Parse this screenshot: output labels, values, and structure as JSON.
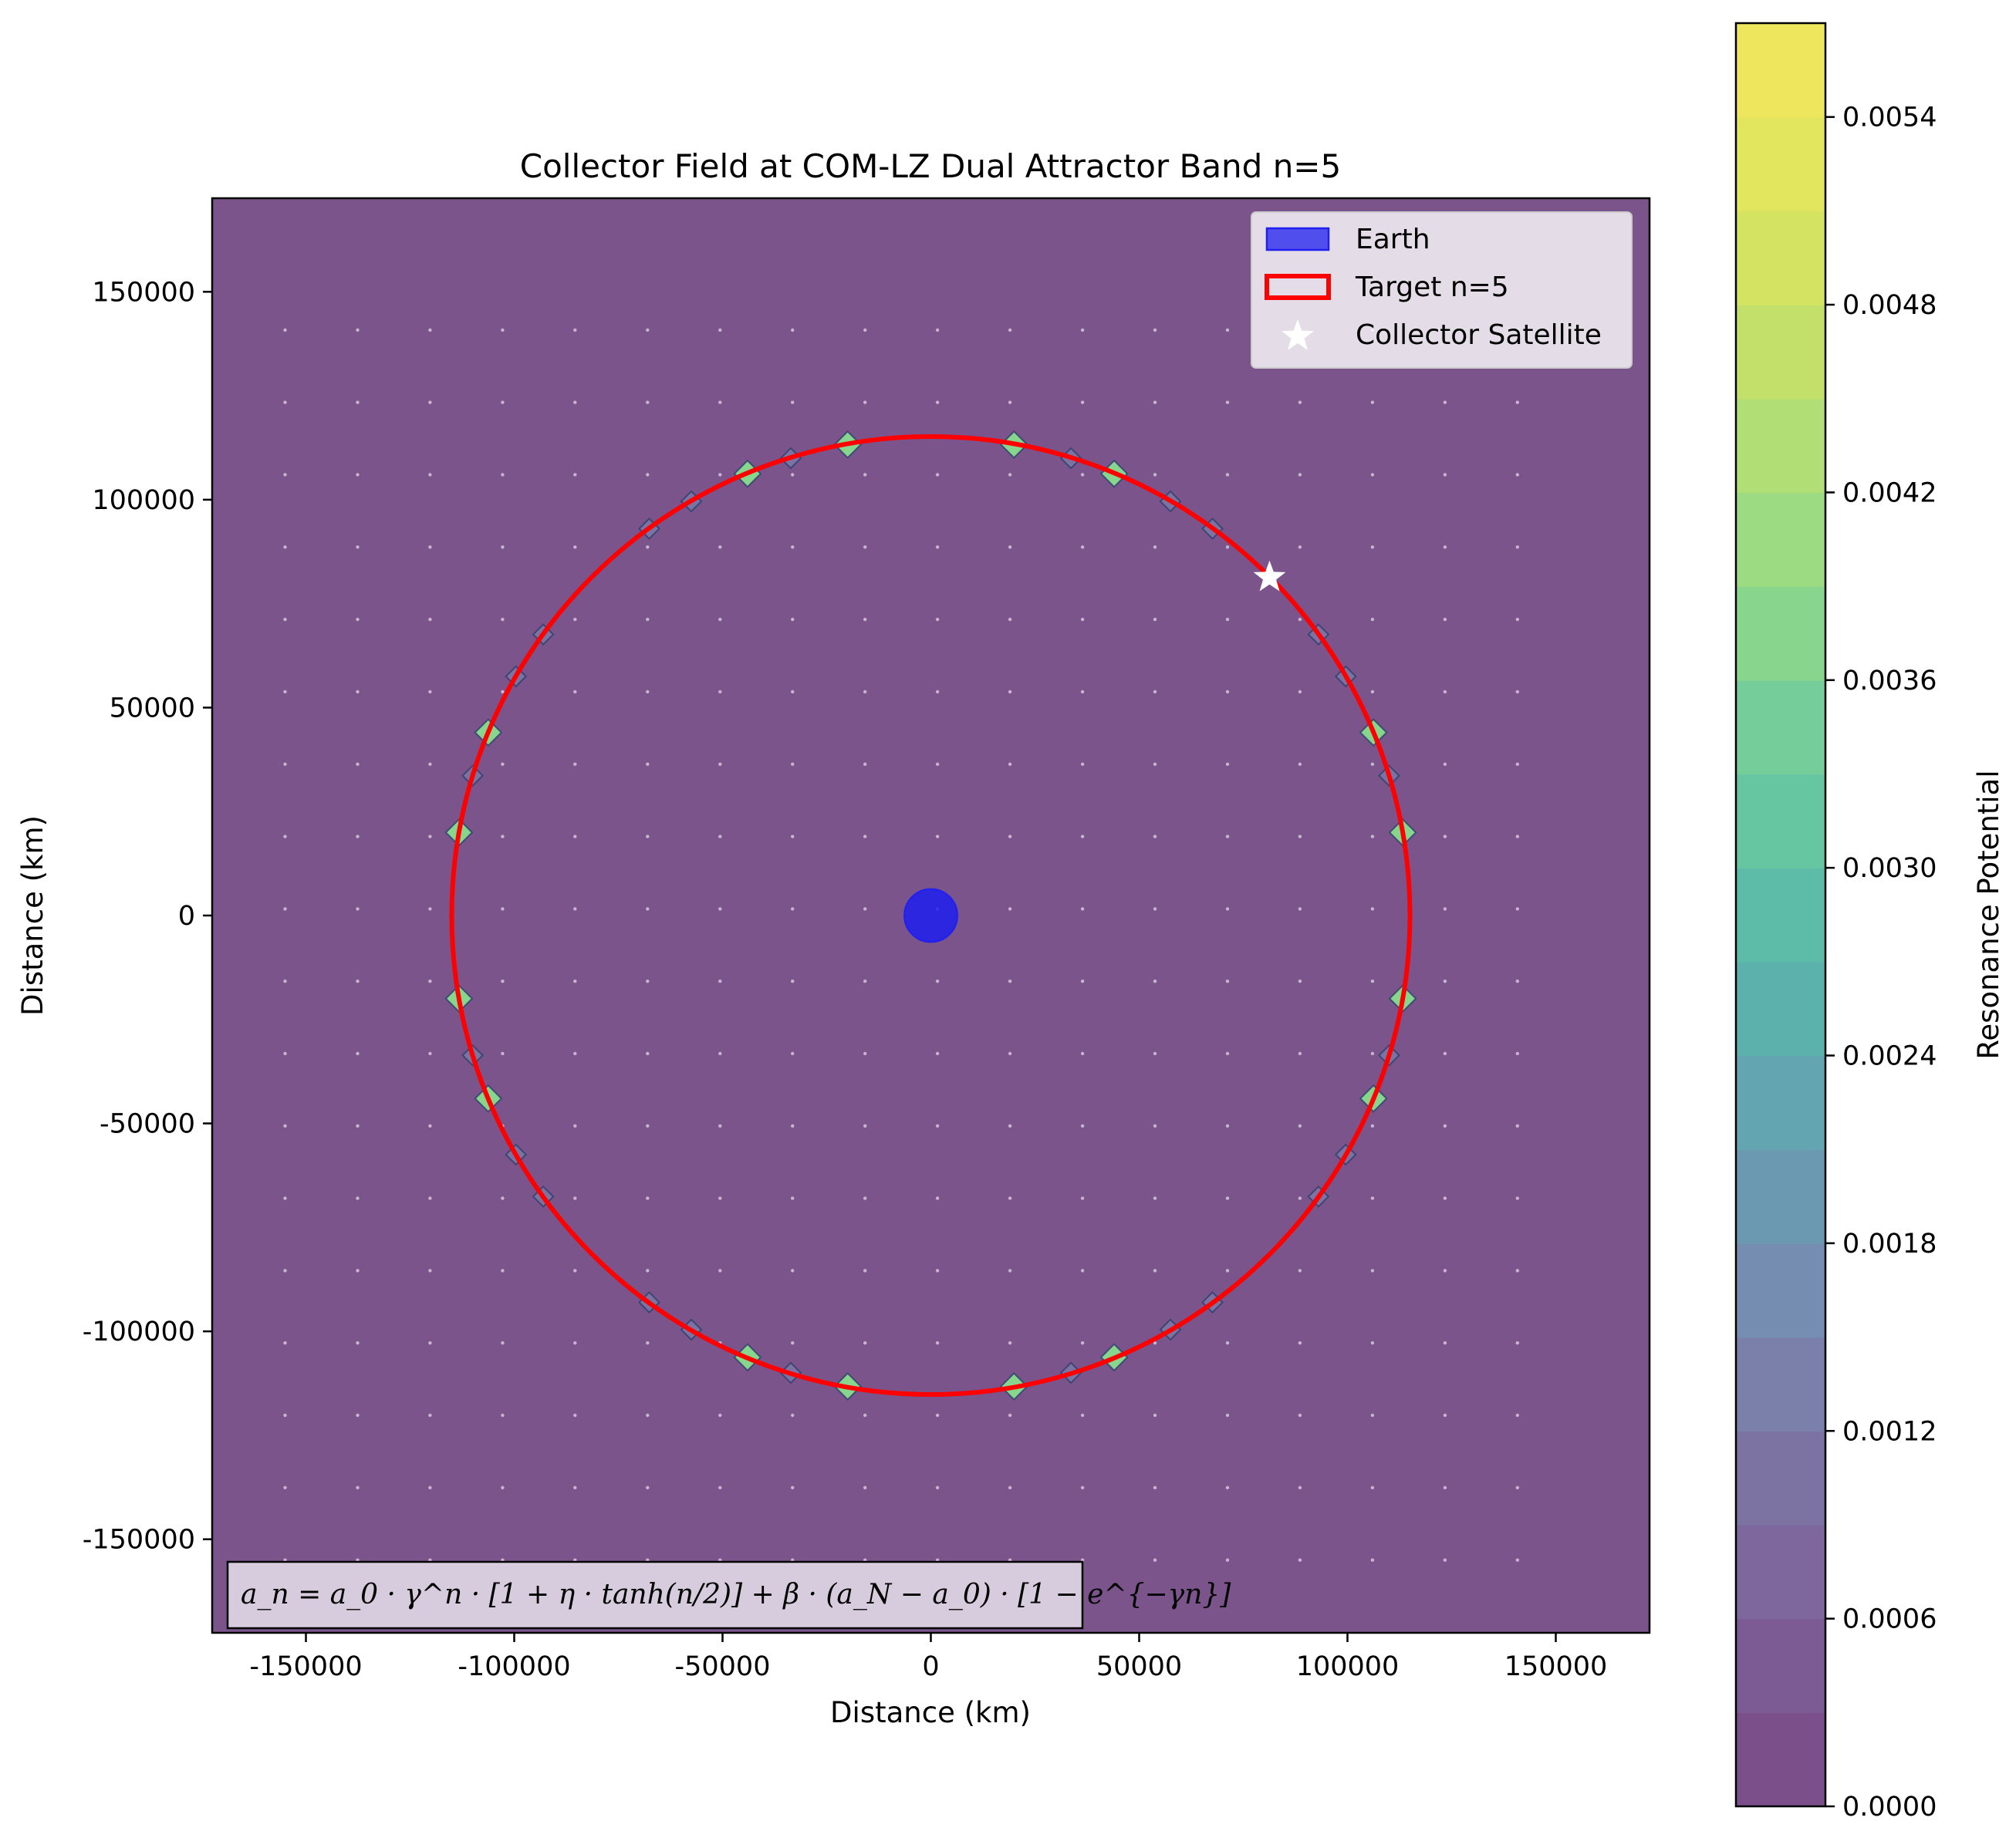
{
  "chart_data": {
    "type": "heatmap",
    "title": "Collector Field at COM-LZ Dual Attractor Band n=5",
    "xlabel": "Distance (km)",
    "ylabel": "Distance (km)",
    "xlim": [
      -172500,
      172500
    ],
    "ylim": [
      -172500,
      172500
    ],
    "xticks": [
      -150000,
      -100000,
      -50000,
      0,
      50000,
      100000,
      150000
    ],
    "yticks": [
      -150000,
      -100000,
      -50000,
      0,
      50000,
      100000,
      150000
    ],
    "xtick_labels": [
      "-150000",
      "-100000",
      "-50000",
      "0",
      "50000",
      "100000",
      "150000"
    ],
    "ytick_labels": [
      "-150000",
      "-100000",
      "-50000",
      "0",
      "50000",
      "100000",
      "150000"
    ],
    "background_color": "#7b548c",
    "grid_dots": {
      "color": "#e0d6e6",
      "x_start": -155000,
      "x_end": 155000,
      "x_step": 17400,
      "y_start": -155000,
      "y_end": 155000,
      "y_step": 17400
    },
    "target_orbit": {
      "label": "Target n=5",
      "center": [
        0,
        0
      ],
      "radius": 115000,
      "color": "#ff0000"
    },
    "earth": {
      "label": "Earth",
      "center": [
        0,
        0
      ],
      "radius": 6371,
      "color": "#1f1ff0"
    },
    "collector_satellite": {
      "label": "Collector Satellite",
      "x": 81300,
      "y": 81300,
      "color": "#ffffff"
    },
    "resonance_nodes": {
      "radius": 115000,
      "strong_angles_deg": [
        10,
        22.5,
        67.5,
        80,
        100,
        112.5,
        157.5,
        170,
        190,
        202.5,
        247.5,
        260,
        280,
        292.5,
        337.5,
        350
      ],
      "weak_angles_deg": [
        17,
        30,
        36,
        54,
        60,
        73,
        107,
        120,
        126,
        144,
        150,
        163,
        197,
        210,
        216,
        234,
        240,
        253,
        287,
        300,
        306,
        324,
        330,
        343
      ],
      "strong_value": 0.0036,
      "weak_value": 0.0012
    },
    "colorbar": {
      "label": "Resonance Potential",
      "min": 0.0,
      "max": 0.0057,
      "levels": 19,
      "ticks": [
        0.0,
        0.0006,
        0.0012,
        0.0018,
        0.0024,
        0.003,
        0.0036,
        0.0042,
        0.0048,
        0.0054
      ],
      "tick_labels": [
        "0.0000",
        "0.0006",
        "0.0012",
        "0.0018",
        "0.0024",
        "0.0030",
        "0.0036",
        "0.0042",
        "0.0048",
        "0.0054"
      ],
      "colors": [
        "#7b4f8a",
        "#7c5a93",
        "#7d679c",
        "#7c73a3",
        "#7a80aa",
        "#748db0",
        "#6c99b2",
        "#64a5b2",
        "#5cb1ad",
        "#5dbca8",
        "#66c6a2",
        "#75ce99",
        "#88d58e",
        "#9ddb82",
        "#b1df75",
        "#c3e16a",
        "#d4e462",
        "#e2e65e",
        "#eee75e"
      ]
    },
    "legend": {
      "position": "upper right",
      "entries": [
        "Earth",
        "Target n=5",
        "Collector Satellite"
      ]
    },
    "annotation": {
      "text": "a_n = a_0 · γ^n · [1 + η · tanh(n/2)] + β · (a_N − a_0) · [1 − e^{−γn}]",
      "position": "lower left"
    }
  }
}
